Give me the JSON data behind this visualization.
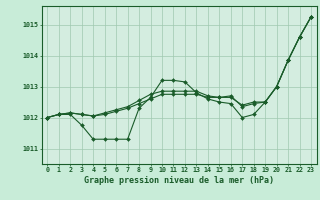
{
  "title": "Graphe pression niveau de la mer (hPa)",
  "background_color": "#c8ecd8",
  "plot_bg_color": "#d4ede0",
  "grid_color": "#a0c8b0",
  "line_color": "#1a5c2a",
  "xlim": [
    -0.5,
    23.5
  ],
  "ylim": [
    1010.5,
    1015.6
  ],
  "yticks": [
    1011,
    1012,
    1013,
    1014,
    1015
  ],
  "xticks": [
    0,
    1,
    2,
    3,
    4,
    5,
    6,
    7,
    8,
    9,
    10,
    11,
    12,
    13,
    14,
    15,
    16,
    17,
    18,
    19,
    20,
    21,
    22,
    23
  ],
  "series": [
    [
      1012.0,
      1012.1,
      1012.1,
      1011.75,
      1011.3,
      1011.3,
      1011.3,
      1011.3,
      1012.3,
      1012.65,
      1013.2,
      1013.2,
      1013.15,
      1012.8,
      1012.6,
      1012.5,
      1012.45,
      1012.0,
      1012.1,
      1012.5,
      1013.0,
      1013.85,
      1014.6,
      1015.25
    ],
    [
      1012.0,
      1012.1,
      1012.15,
      1012.1,
      1012.05,
      1012.1,
      1012.2,
      1012.3,
      1012.45,
      1012.6,
      1012.75,
      1012.75,
      1012.75,
      1012.75,
      1012.65,
      1012.65,
      1012.65,
      1012.4,
      1012.5,
      1012.5,
      1013.0,
      1013.85,
      1014.6,
      1015.25
    ],
    [
      1012.0,
      1012.1,
      1012.15,
      1012.1,
      1012.05,
      1012.15,
      1012.25,
      1012.35,
      1012.55,
      1012.75,
      1012.85,
      1012.85,
      1012.85,
      1012.85,
      1012.7,
      1012.65,
      1012.7,
      1012.35,
      1012.45,
      1012.5,
      1013.0,
      1013.85,
      1014.6,
      1015.25
    ]
  ]
}
